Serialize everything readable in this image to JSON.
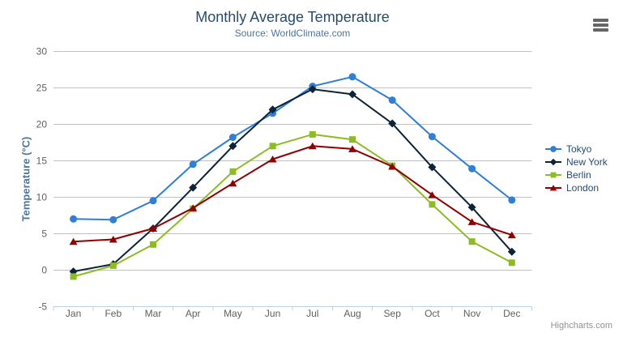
{
  "title": "Monthly Average Temperature",
  "subtitle": "Source: WorldClimate.com",
  "credits": "Highcharts.com",
  "chart_data": {
    "type": "line",
    "title": "Monthly Average Temperature",
    "subtitle": "Source: WorldClimate.com",
    "categories": [
      "Jan",
      "Feb",
      "Mar",
      "Apr",
      "May",
      "Jun",
      "Jul",
      "Aug",
      "Sep",
      "Oct",
      "Nov",
      "Dec"
    ],
    "xlabel": "",
    "ylabel": "Temperature (°C)",
    "ylim": [
      -5,
      30
    ],
    "ytick_step": 5,
    "grid": true,
    "legend_position": "right-middle",
    "series": [
      {
        "name": "Tokyo",
        "color": "#2f7ed8",
        "marker": "circle",
        "values": [
          7.0,
          6.9,
          9.5,
          14.5,
          18.2,
          21.5,
          25.2,
          26.5,
          23.3,
          18.3,
          13.9,
          9.6
        ]
      },
      {
        "name": "New York",
        "color": "#0d233a",
        "marker": "diamond",
        "values": [
          -0.2,
          0.8,
          5.7,
          11.3,
          17.0,
          22.0,
          24.8,
          24.1,
          20.1,
          14.1,
          8.6,
          2.5
        ]
      },
      {
        "name": "Berlin",
        "color": "#8bbc21",
        "marker": "square",
        "values": [
          -0.9,
          0.6,
          3.5,
          8.4,
          13.5,
          17.0,
          18.6,
          17.9,
          14.3,
          9.0,
          3.9,
          1.0
        ]
      },
      {
        "name": "London",
        "color": "#910000",
        "marker": "triangle",
        "values": [
          3.9,
          4.2,
          5.7,
          8.5,
          11.9,
          15.2,
          17.0,
          16.6,
          14.2,
          10.3,
          6.6,
          4.8
        ]
      }
    ]
  },
  "colors": {
    "title_text": "#274b6d",
    "subtitle_text": "#4d759e",
    "axis_label": "#606060",
    "axis_title": "#4d759e",
    "legend_text": "#274b6d",
    "grid_line": "#c0c0c0",
    "axis_line": "#c0d0e0",
    "credits_text": "#909090",
    "menu_icon": "#666666",
    "background": "#ffffff"
  }
}
